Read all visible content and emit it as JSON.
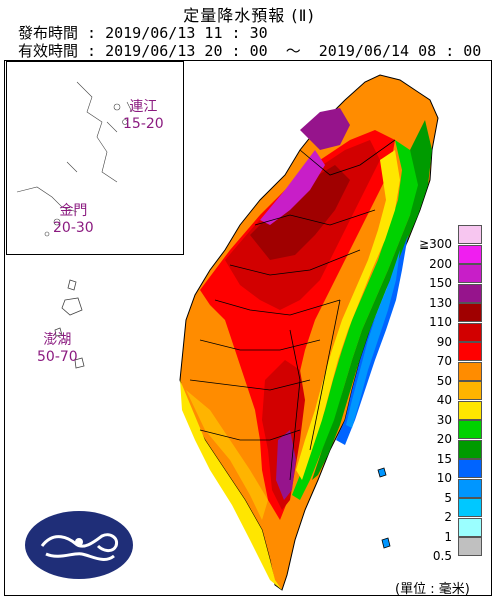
{
  "header": {
    "title": "定量降水預報 (Ⅱ)",
    "issue_time": "發布時間 : 2019/06/13 11 : 30",
    "valid_time": "有效時間 : 2019/06/13 20 : 00  〜  2019/06/14 08 : 00"
  },
  "regions": {
    "matsu": {
      "name": "連江",
      "range": "15-20"
    },
    "kinmen": {
      "name": "金門",
      "range": "20-30"
    },
    "penghu": {
      "name": "澎湖",
      "range": "50-70"
    }
  },
  "legend": {
    "unit": "(單位 : 毫米)",
    "items": [
      {
        "label": "≧300",
        "color": "#f7c6f0"
      },
      {
        "label": "200",
        "color": "#f01ef0"
      },
      {
        "label": "150",
        "color": "#c81ec8"
      },
      {
        "label": "130",
        "color": "#96148c"
      },
      {
        "label": "110",
        "color": "#a00000"
      },
      {
        "label": "90",
        "color": "#d20000"
      },
      {
        "label": "70",
        "color": "#ff0000"
      },
      {
        "label": "50",
        "color": "#ff8c00"
      },
      {
        "label": "40",
        "color": "#ffb400"
      },
      {
        "label": "30",
        "color": "#ffe600"
      },
      {
        "label": "20",
        "color": "#00d200"
      },
      {
        "label": "15",
        "color": "#009b00"
      },
      {
        "label": "10",
        "color": "#0064ff"
      },
      {
        "label": "5",
        "color": "#0096ff"
      },
      {
        "label": "2",
        "color": "#00c8ff"
      },
      {
        "label": "1",
        "color": "#9bffff"
      },
      {
        "label": "0.5",
        "color": "#c0c0c0"
      }
    ]
  },
  "logo": {
    "name": "cwb-logo-icon",
    "color": "#1f2e78"
  }
}
